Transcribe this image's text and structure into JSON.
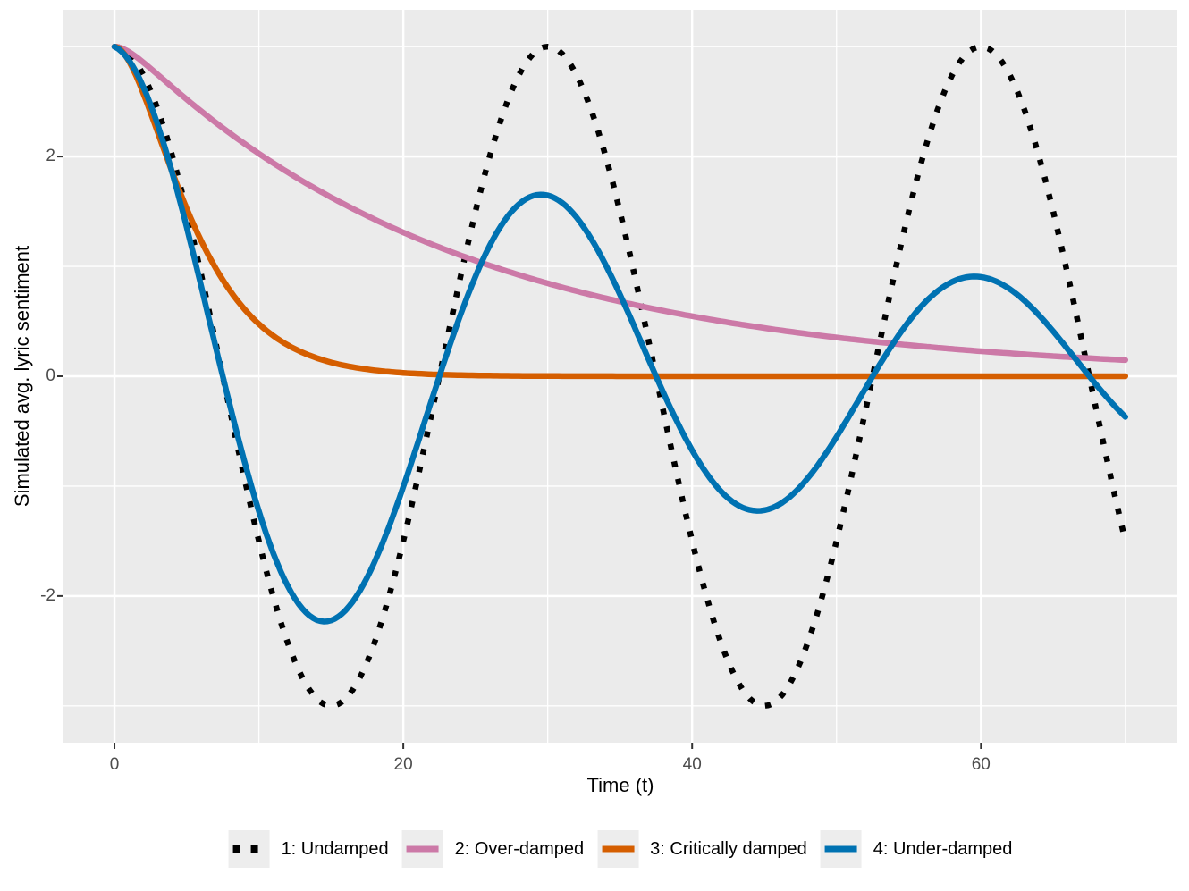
{
  "figure": {
    "background": "#ffffff"
  },
  "panel": {
    "fill": "#ebebeb",
    "grid_color": "#ffffff",
    "tick_mark_color": "#333333",
    "tick_label_color": "#4d4d4d"
  },
  "axes": {
    "x": {
      "title": "Time (t)",
      "tick_labels": [
        "0",
        "20",
        "40",
        "60"
      ],
      "tick_values": [
        0,
        20,
        40,
        60
      ],
      "minor_values": [
        10,
        30,
        50,
        70
      ]
    },
    "y": {
      "title": "Simulated avg. lyric sentiment",
      "tick_labels": [
        "2",
        "0",
        "-2"
      ],
      "tick_values": [
        2,
        0,
        -2
      ],
      "minor_values": [
        3,
        1,
        -1,
        -3
      ]
    }
  },
  "legend": {
    "items": [
      {
        "label": "1: Undamped",
        "color": "#000000",
        "linetype": "dotted"
      },
      {
        "label": "2: Over-damped",
        "color": "#cc79a7",
        "linetype": "solid"
      },
      {
        "label": "3: Critically damped",
        "color": "#d55e00",
        "linetype": "solid"
      },
      {
        "label": "4: Under-damped",
        "color": "#0072b2",
        "linetype": "solid"
      }
    ]
  },
  "chart_data": {
    "type": "line",
    "title": "",
    "xlabel": "Time (t)",
    "ylabel": "Simulated avg. lyric sentiment",
    "xlim": [
      0,
      70
    ],
    "ylim": [
      -3.05,
      3.05
    ],
    "x_domain": [
      -3.53,
      73.6
    ],
    "y_domain": [
      -3.335,
      3.335
    ],
    "x_breaks": [
      0,
      20,
      40,
      60
    ],
    "y_breaks": [
      -2,
      0,
      2
    ],
    "grid": true,
    "legend_position": "bottom",
    "t": [
      0,
      5,
      10,
      15,
      20,
      25,
      30,
      35,
      40,
      45,
      50,
      55,
      60,
      65,
      70
    ],
    "series": [
      {
        "name": "1: Undamped",
        "color": "#000000",
        "linetype": "dotted",
        "model": {
          "type": "damped_cosine",
          "amplitude": 3,
          "decay": 0,
          "period": 30
        },
        "values": [
          3,
          1.5,
          -1.5,
          -3,
          -1.5,
          1.5,
          3,
          1.5,
          -1.5,
          -3,
          -1.5,
          1.5,
          3,
          1.5,
          -1.5
        ]
      },
      {
        "name": "2: Over-damped",
        "color": "#cc79a7",
        "linetype": "solid",
        "model": {
          "type": "biexponential",
          "c1": 3.137,
          "r1": 0.0437,
          "c2": -0.137,
          "r2": 1.0035
        },
        "values": [
          3,
          2.52,
          2.03,
          1.63,
          1.31,
          1.05,
          0.85,
          0.68,
          0.55,
          0.44,
          0.35,
          0.28,
          0.23,
          0.18,
          0.15
        ]
      },
      {
        "name": "3: Critically damped",
        "color": "#d55e00",
        "linetype": "solid",
        "model": {
          "type": "critical",
          "amplitude": 3,
          "rate": 0.33
        },
        "values": [
          3,
          1.53,
          0.48,
          0.13,
          0.03,
          0.01,
          0,
          0,
          0,
          0,
          0,
          0,
          0,
          0,
          0
        ]
      },
      {
        "name": "4: Under-damped",
        "color": "#0072b2",
        "linetype": "solid",
        "model": {
          "type": "damped_cosine",
          "amplitude": 3,
          "decay": 0.02,
          "period": 30
        },
        "values": [
          3,
          1.36,
          -1.23,
          -2.22,
          -1.01,
          0.91,
          1.65,
          0.74,
          -0.67,
          -1.22,
          -0.55,
          0.5,
          0.9,
          0.41,
          -0.37
        ]
      }
    ]
  }
}
